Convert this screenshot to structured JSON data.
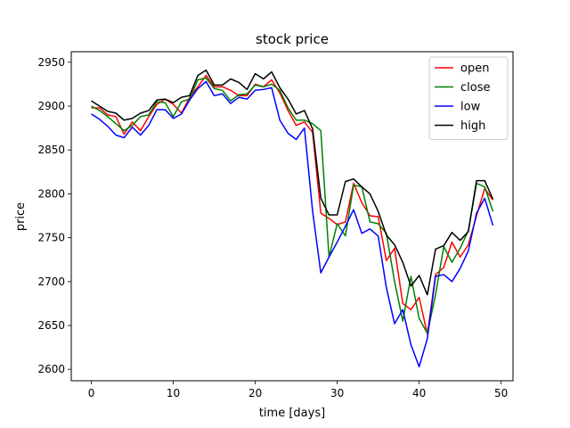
{
  "chart_data": {
    "type": "line",
    "title": "stock price",
    "xlabel": "time [days]",
    "ylabel": "price",
    "xlim": [
      -2.45,
      51.45
    ],
    "ylim": [
      2587,
      2962
    ],
    "xticks": [
      0,
      10,
      20,
      30,
      40,
      50
    ],
    "yticks": [
      2600,
      2650,
      2700,
      2750,
      2800,
      2850,
      2900,
      2950
    ],
    "grid": false,
    "legend_position": "top-right",
    "x": [
      0,
      1,
      2,
      3,
      4,
      5,
      6,
      7,
      8,
      9,
      10,
      11,
      12,
      13,
      14,
      15,
      16,
      17,
      18,
      19,
      20,
      21,
      22,
      23,
      24,
      25,
      26,
      27,
      28,
      29,
      30,
      31,
      32,
      33,
      34,
      35,
      36,
      37,
      38,
      39,
      40,
      41,
      42,
      43,
      44,
      45,
      46,
      47,
      48,
      49
    ],
    "series": [
      {
        "name": "open",
        "color": "#ff0000",
        "values": [
          2898,
          2898,
          2890,
          2888,
          2868,
          2882,
          2872,
          2888,
          2902,
          2908,
          2902,
          2892,
          2910,
          2922,
          2935,
          2922,
          2922,
          2918,
          2912,
          2912,
          2925,
          2922,
          2930,
          2915,
          2895,
          2878,
          2882,
          2870,
          2778,
          2772,
          2765,
          2768,
          2812,
          2790,
          2775,
          2774,
          2724,
          2738,
          2675,
          2668,
          2682,
          2640,
          2708,
          2716,
          2745,
          2728,
          2742,
          2775,
          2806,
          2793
        ]
      },
      {
        "name": "close",
        "color": "#008000",
        "values": [
          2900,
          2895,
          2888,
          2880,
          2872,
          2878,
          2888,
          2890,
          2905,
          2904,
          2888,
          2905,
          2908,
          2930,
          2932,
          2920,
          2918,
          2906,
          2913,
          2914,
          2924,
          2922,
          2925,
          2918,
          2898,
          2884,
          2884,
          2880,
          2872,
          2728,
          2766,
          2752,
          2810,
          2808,
          2768,
          2766,
          2755,
          2700,
          2655,
          2706,
          2658,
          2641,
          2685,
          2740,
          2722,
          2738,
          2758,
          2812,
          2808,
          2780
        ]
      },
      {
        "name": "low",
        "color": "#0000ff",
        "values": [
          2891,
          2885,
          2877,
          2867,
          2864,
          2876,
          2867,
          2878,
          2896,
          2896,
          2886,
          2891,
          2907,
          2920,
          2928,
          2912,
          2914,
          2903,
          2910,
          2908,
          2918,
          2919,
          2921,
          2884,
          2869,
          2862,
          2875,
          2780,
          2710,
          2728,
          2745,
          2763,
          2782,
          2755,
          2760,
          2752,
          2693,
          2652,
          2668,
          2628,
          2603,
          2635,
          2706,
          2708,
          2700,
          2715,
          2735,
          2778,
          2795,
          2764
        ]
      },
      {
        "name": "high",
        "color": "#000000",
        "values": [
          2906,
          2900,
          2894,
          2892,
          2884,
          2886,
          2892,
          2895,
          2907,
          2908,
          2904,
          2910,
          2912,
          2935,
          2941,
          2924,
          2924,
          2931,
          2927,
          2919,
          2937,
          2931,
          2939,
          2921,
          2908,
          2891,
          2895,
          2874,
          2795,
          2776,
          2776,
          2814,
          2817,
          2808,
          2800,
          2780,
          2753,
          2742,
          2722,
          2695,
          2707,
          2685,
          2737,
          2741,
          2756,
          2747,
          2757,
          2815,
          2815,
          2794
        ]
      }
    ]
  }
}
